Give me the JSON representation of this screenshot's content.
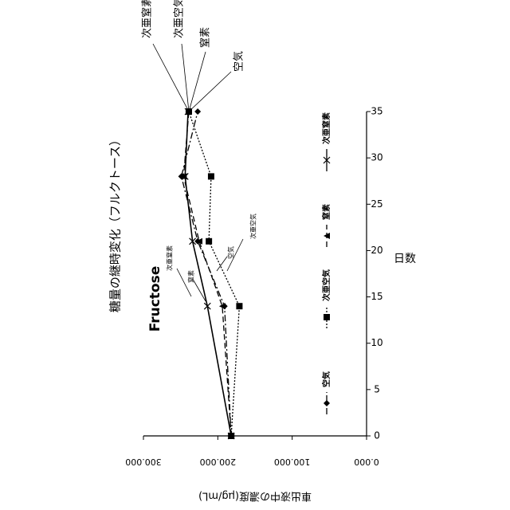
{
  "chart_data": {
    "type": "line",
    "title": "糖量の継時変化（フルクトース）",
    "subtitle": "Fructose",
    "x_label": "日数",
    "y_label": "車出液中の濃度(μg/mL)",
    "x": [
      0,
      14,
      21,
      28,
      35
    ],
    "xlim": [
      0,
      35
    ],
    "xticks": [
      0,
      5,
      10,
      15,
      20,
      25,
      30,
      35
    ],
    "ylim": [
      0,
      300000
    ],
    "yticks": [
      {
        "value": 0,
        "label": "0.000"
      },
      {
        "value": 100000,
        "label": "100.000"
      },
      {
        "value": 200000,
        "label": "200.000"
      },
      {
        "value": 300000,
        "label": "300.000"
      }
    ],
    "series": [
      {
        "name": "空気",
        "color": "#000000",
        "marker": "diamond",
        "dash": "8,3,2,3",
        "values": [
          182000,
          191000,
          227000,
          249000,
          227000
        ]
      },
      {
        "name": "次亜空気",
        "color": "#000000",
        "marker": "square",
        "dash": "2,2",
        "values": [
          182000,
          171000,
          212000,
          209000,
          239000
        ]
      },
      {
        "name": "窒素",
        "color": "#000000",
        "marker": "triangle",
        "dash": "7,4",
        "values": [
          182000,
          194000,
          225000,
          246000,
          239000
        ]
      },
      {
        "name": "次亜窒素",
        "color": "#000000",
        "marker": "x",
        "dash": "",
        "values": [
          182000,
          214000,
          234000,
          244000,
          240000
        ]
      }
    ],
    "annotations": [
      "次亜窒素",
      "窒素",
      "空気",
      "次亜空気",
      "次亜窒素",
      "次亜空気",
      "窒素",
      "空気"
    ]
  }
}
